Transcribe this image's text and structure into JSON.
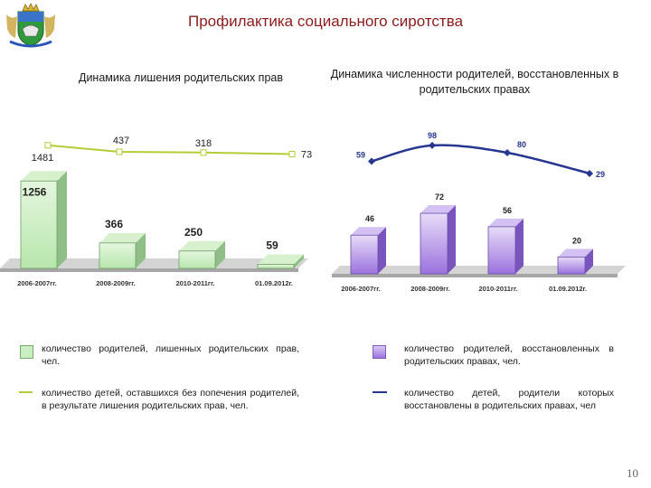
{
  "header": {
    "title": "Профилактика социального сиротства",
    "emblem_icon": "coat-of-arms-icon"
  },
  "colors": {
    "title_red": "#8b1c1c",
    "green_bar": "#c9efc0",
    "green_line": "#b5cc36",
    "purple_bar": "#b79ae6",
    "blue_line": "#27378f",
    "floor": "#a6a6a6"
  },
  "chart_data": [
    {
      "type": "bar",
      "title": "Динамика лишения  родительских прав",
      "categories": [
        "2006-2007гг.",
        "2008-2009гг.",
        "2010-2011гг.",
        "01.09.2012г."
      ],
      "series": [
        {
          "name": "количество  родителей,  лишенных  родительских  прав, чел.",
          "type": "bar",
          "values": [
            1256,
            366,
            250,
            59
          ]
        },
        {
          "name": "количество  детей,  оставшихся  без  попечения  родителей,  в  результате  лишения  родительских  прав, чел.",
          "type": "line",
          "values": [
            1481,
            437,
            318,
            73
          ]
        }
      ],
      "bar_labels": [
        "1256",
        "366",
        "250",
        "59"
      ],
      "line_labels": [
        "1481",
        "437",
        "318",
        "73"
      ]
    },
    {
      "type": "bar",
      "title": "Динамика численности родителей, восстановленных в родительских правах",
      "categories": [
        "2006-2007гг.",
        "2008-2009гг.",
        "2010-2011гг.",
        "01.09.2012г."
      ],
      "series": [
        {
          "name": "количество родителей, восстановленных в родительских правах, чел.",
          "type": "bar",
          "values": [
            46,
            72,
            56,
            20
          ]
        },
        {
          "name": "количество  детей,  родители  которых  восстановлены  в  родительских  правах, чел",
          "type": "line",
          "values": [
            59,
            98,
            80,
            29
          ]
        }
      ],
      "bar_labels": [
        "46",
        "72",
        "56",
        "20"
      ],
      "line_labels": [
        "59",
        "98",
        "80",
        "29"
      ]
    }
  ],
  "footer": {
    "page_number": "10"
  }
}
